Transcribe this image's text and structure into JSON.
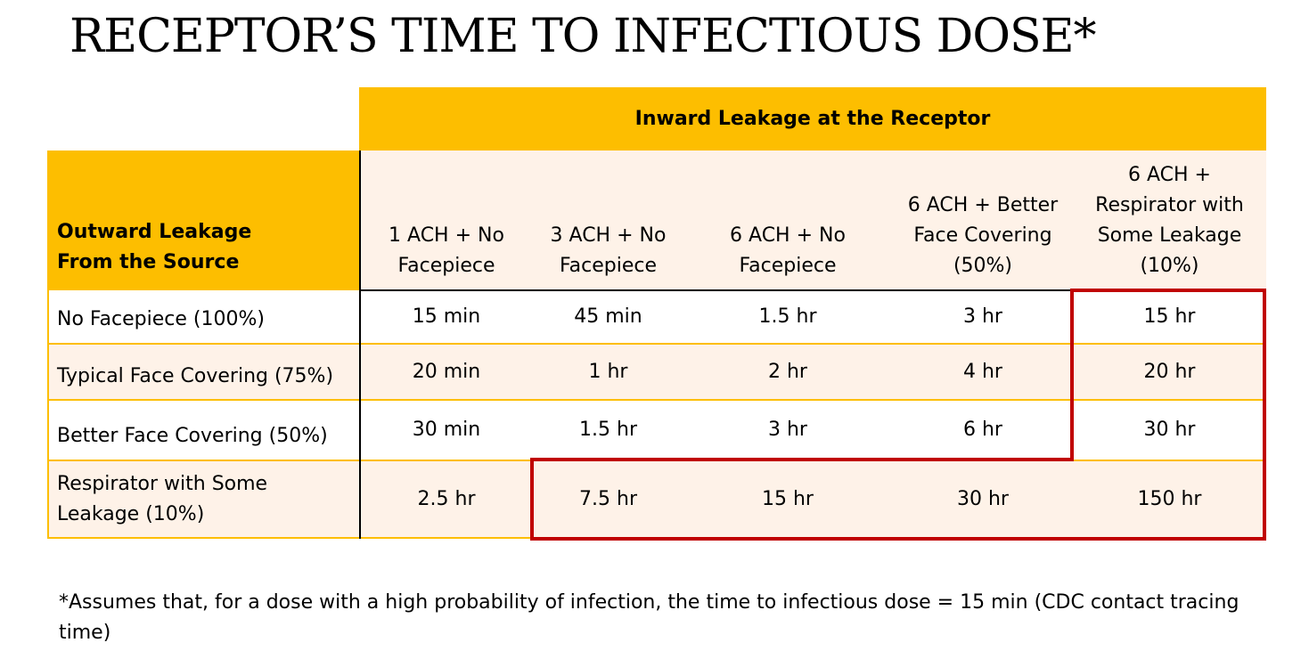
{
  "title": "RECEPTOR’S TIME TO INFECTIOUS DOSE*",
  "table": {
    "top_header": "Inward Leakage at the Receptor",
    "corner_header_line1": "Outward Leakage",
    "corner_header_line2": "From the Source",
    "columns": [
      {
        "lines": [
          "1 ACH + No",
          "Facepiece"
        ]
      },
      {
        "lines": [
          "3 ACH + No",
          "Facepiece"
        ]
      },
      {
        "lines": [
          "6 ACH + No",
          "Facepiece"
        ]
      },
      {
        "lines": [
          "6 ACH + Better",
          "Face Covering",
          "(50%)"
        ]
      },
      {
        "lines": [
          "6 ACH +",
          "Respirator with",
          "Some Leakage",
          "(10%)"
        ]
      }
    ],
    "rows": [
      {
        "label_lines": [
          "No Facepiece (100%)"
        ],
        "cells": [
          "15 min",
          "45 min",
          "1.5 hr",
          "3 hr",
          "15 hr"
        ]
      },
      {
        "label_lines": [
          "Typical Face Covering (75%)"
        ],
        "cells": [
          "20 min",
          "1 hr",
          "2 hr",
          "4 hr",
          "20 hr"
        ]
      },
      {
        "label_lines": [
          "Better Face Covering (50%)"
        ],
        "cells": [
          "30 min",
          "1.5 hr",
          "3 hr",
          "6 hr",
          "30 hr"
        ]
      },
      {
        "label_lines": [
          "Respirator with Some",
          "Leakage (10%)"
        ],
        "cells": [
          "2.5 hr",
          "7.5 hr",
          "15 hr",
          "30 hr",
          "150 hr"
        ]
      }
    ],
    "highlight_color": "#C00000",
    "header_color": "#FDBE00",
    "shade_color": "#FEF2E8"
  },
  "footnote": "*Assumes that, for a dose with a high probability of infection, the time to infectious dose = 15 min (CDC contact tracing time)"
}
